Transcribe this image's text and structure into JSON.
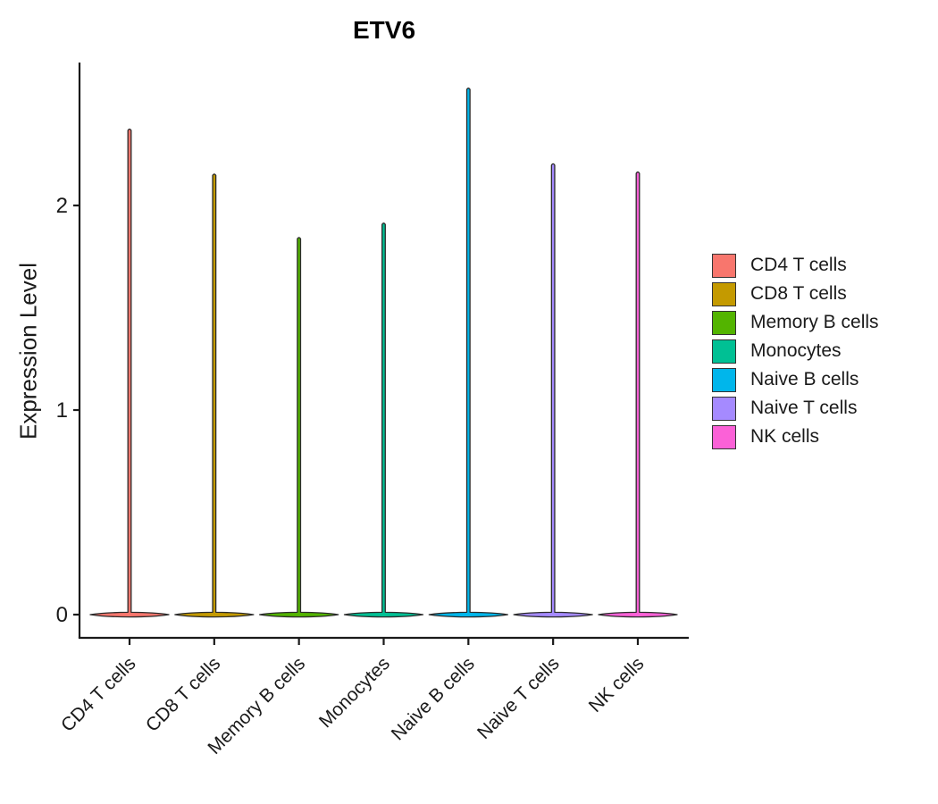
{
  "page": {
    "background": "#ffffff"
  },
  "chart_data": {
    "type": "violin",
    "title": "ETV6",
    "ylabel": "Expression Level",
    "xlabel": "",
    "yticks": [
      0,
      1,
      2
    ],
    "ylim": [
      -0.11,
      2.7
    ],
    "grid": false,
    "legend_position": "right",
    "categories": [
      "CD4 T cells",
      "CD8 T cells",
      "Memory B cells",
      "Monocytes",
      "Naive B cells",
      "Naive T cells",
      "NK cells"
    ],
    "series": [
      {
        "name": "CD4 T cells",
        "color": "#F8766D",
        "density_peak_at": 0,
        "min": 0,
        "max": 2.38
      },
      {
        "name": "CD8 T cells",
        "color": "#C49A00",
        "density_peak_at": 0,
        "min": 0,
        "max": 2.16
      },
      {
        "name": "Memory B cells",
        "color": "#53B400",
        "density_peak_at": 0,
        "min": 0,
        "max": 1.85
      },
      {
        "name": "Monocytes",
        "color": "#00C094",
        "density_peak_at": 0,
        "min": 0,
        "max": 1.92
      },
      {
        "name": "Naive B cells",
        "color": "#00B6EB",
        "density_peak_at": 0,
        "min": 0,
        "max": 2.58
      },
      {
        "name": "Naive T cells",
        "color": "#A58AFF",
        "density_peak_at": 0,
        "min": 0,
        "max": 2.21
      },
      {
        "name": "NK cells",
        "color": "#FB61D7",
        "density_peak_at": 0,
        "min": 0,
        "max": 2.17
      }
    ],
    "style": {
      "axis_color": "#1A1A1A",
      "outline_color": "#2B2B2B",
      "text_color": "#1A1A1A",
      "legend_swatch_border": "#333333"
    }
  }
}
